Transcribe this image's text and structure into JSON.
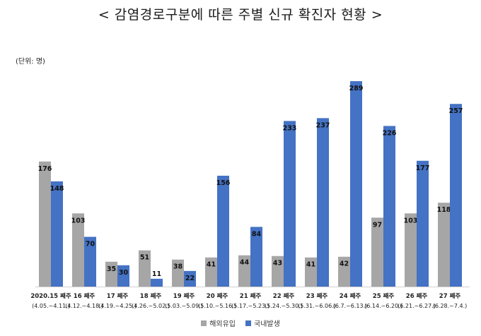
{
  "title": "< 감염경로구분에 따른 주별 신규 확진자 현황 >",
  "unit_label": "(단위: 명)",
  "colors": {
    "overseas": "#a6a6a6",
    "domestic": "#4472c4"
  },
  "chart_data": {
    "type": "bar",
    "title": "< 감염경로구분에 따른 주별 신규 확진자 현황 >",
    "ylabel": "",
    "categories": [
      "2020.15 째주",
      "16 째주",
      "17 째주",
      "18 째주",
      "19 째주",
      "20 째주",
      "21 째주",
      "22 째주",
      "23 째주",
      "24 째주",
      "25 째주",
      "26 째주",
      "27 째주"
    ],
    "date_ranges": [
      "(4.05.~4.11.)",
      "(4.12.~4.18.)",
      "(4.19.~4.25.)",
      "(4.26.~5.02.)",
      "(5.03.~5.09.)",
      "(5.10.~5.16.)",
      "(5.17.~5.23.)",
      "(5.24.~5.30.)",
      "(5.31.~6.06.)",
      "(6.7.~6.13.)",
      "(6.14.~6.20.)",
      "(6.21.~6.27.)",
      "(6.28.~7.4.)"
    ],
    "series": [
      {
        "name": "해외유입",
        "values": [
          176,
          103,
          35,
          51,
          38,
          41,
          44,
          43,
          41,
          42,
          97,
          103,
          118
        ]
      },
      {
        "name": "국내발생",
        "values": [
          148,
          70,
          30,
          11,
          22,
          156,
          84,
          233,
          237,
          289,
          226,
          177,
          257
        ]
      }
    ],
    "ylim": [
      0,
      289
    ],
    "grid": false,
    "legend_position": "bottom"
  }
}
